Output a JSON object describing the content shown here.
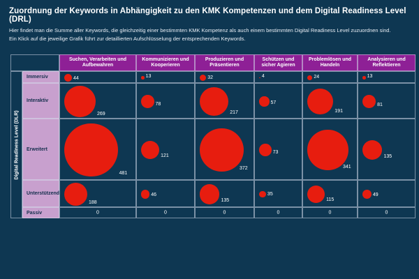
{
  "page": {
    "title": "Zuordnung der Keywords in Abhängigkeit zu den KMK Kompetenzen und dem Digital Readiness Level (DRL)",
    "subtitle_line1": "Hier findet man die Summe aller Keywords, die gleichzeitig einer bestimmten KMK Kompetenz als auch einem bestimmten Digital Readiness Level zuzuordnen sind.",
    "subtitle_line2": "Ein Klick auf die jeweilige Grafik führt zur detaillierten Aufschlüsselung der entsprechenden Keywords."
  },
  "chart_data": {
    "type": "bubble",
    "title": "Zuordnung der Keywords in Abhängigkeit zu den KMK Kompetenzen und dem Digital Readiness Level (DRL)",
    "y_axis_label": "Digital Readiness Level (DLR)",
    "columns": [
      "Suchen, Verarbeiten und Aufbewahren",
      "Kommunizieren und Kooperieren",
      "Produzieren und Präsentieren",
      "Schützen und sicher Agieren",
      "Problemlösen und Handeln",
      "Analysieren und Reflektieren"
    ],
    "rows": [
      "Immersiv",
      "Interaktiv",
      "Erweitert",
      "Unterstützend",
      "Passiv"
    ],
    "values": [
      [
        44,
        13,
        32,
        4,
        24,
        13
      ],
      [
        269,
        78,
        217,
        57,
        191,
        81
      ],
      [
        481,
        121,
        372,
        73,
        341,
        135
      ],
      [
        188,
        46,
        135,
        35,
        115,
        49
      ],
      [
        0,
        0,
        0,
        0,
        0,
        0
      ]
    ],
    "colors": {
      "background": "#0e3752",
      "header_bg": "#8e2096",
      "row_label_bg": "#c8a0ce",
      "row_label_text": "#152f4d",
      "bubble": "#e71d0f",
      "grid_line": "rgba(213,221,235,0.55)",
      "text": "#ffffff"
    },
    "legend": "none",
    "grid": true
  }
}
